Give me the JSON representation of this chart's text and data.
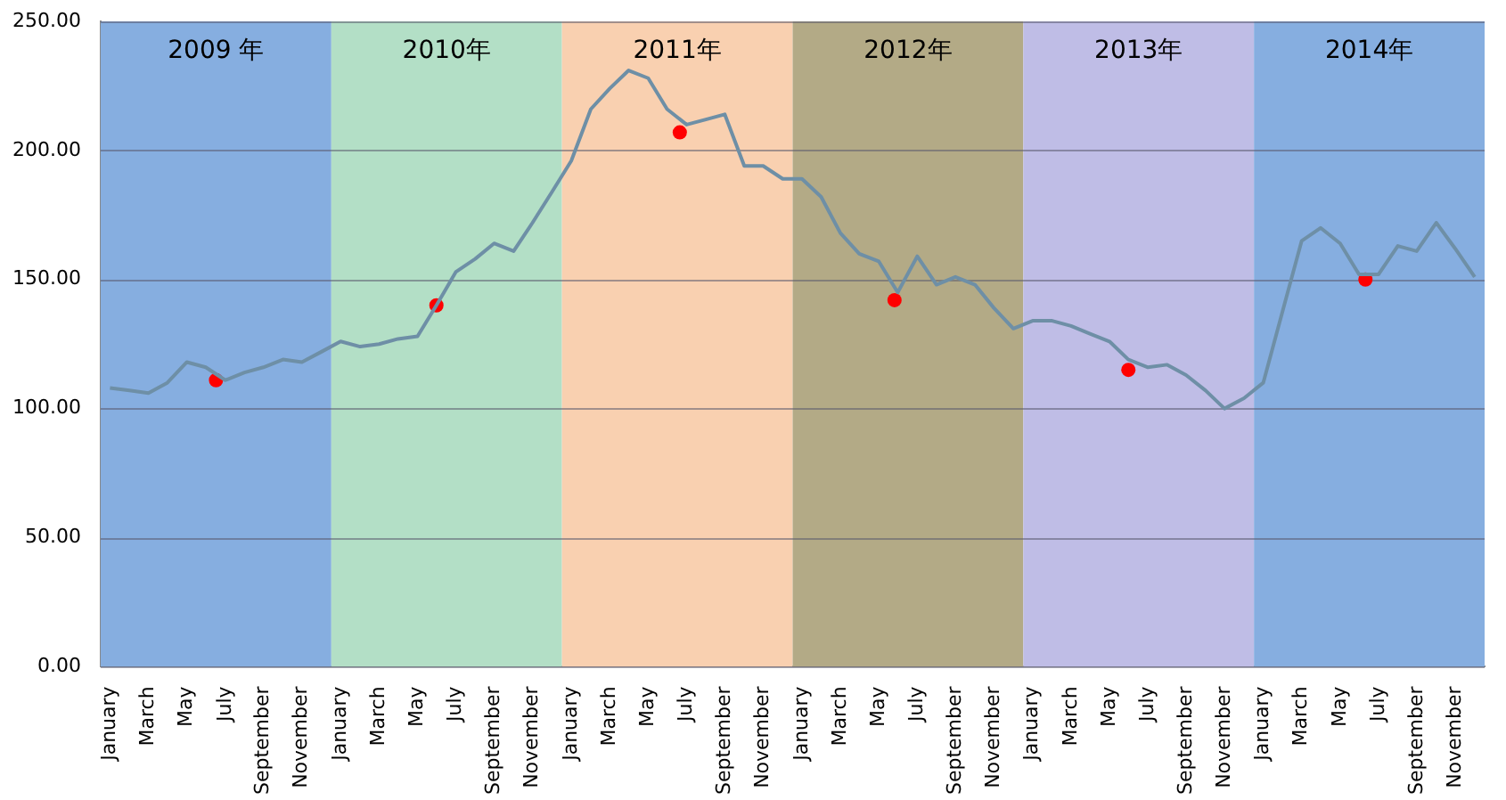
{
  "chart_data": {
    "type": "line",
    "grid": "y",
    "legend": false,
    "marker": "none",
    "line_style": "solid",
    "x": [
      "2009-01-16",
      "2009-02-15",
      "2009-03-16",
      "2009-04-15",
      "2009-05-16",
      "2009-06-15",
      "2009-07-16",
      "2009-08-16",
      "2009-09-15",
      "2009-10-16",
      "2009-11-15",
      "2009-12-16",
      "2010-01-16",
      "2010-02-15",
      "2010-03-16",
      "2010-04-15",
      "2010-05-16",
      "2010-06-15",
      "2010-07-16",
      "2010-08-16",
      "2010-09-15",
      "2010-10-16",
      "2010-11-15",
      "2010-12-16",
      "2011-01-16",
      "2011-02-15",
      "2011-03-16",
      "2011-04-15",
      "2011-05-16",
      "2011-06-15",
      "2011-07-16",
      "2011-08-16",
      "2011-09-15",
      "2011-10-16",
      "2011-11-15",
      "2011-12-16",
      "2012-01-16",
      "2012-02-15",
      "2012-03-16",
      "2012-04-15",
      "2012-05-16",
      "2012-06-15",
      "2012-07-16",
      "2012-08-16",
      "2012-09-15",
      "2012-10-16",
      "2012-11-15",
      "2012-12-16",
      "2013-01-16",
      "2013-02-15",
      "2013-03-16",
      "2013-04-15",
      "2013-05-16",
      "2013-06-15",
      "2013-07-16",
      "2013-08-16",
      "2013-09-15",
      "2013-10-16",
      "2013-11-15",
      "2013-12-16",
      "2014-01-16",
      "2014-02-15",
      "2014-03-16",
      "2014-04-15",
      "2014-05-16",
      "2014-06-15",
      "2014-07-16",
      "2014-08-16",
      "2014-09-15",
      "2014-10-16",
      "2014-11-15",
      "2014-12-16"
    ],
    "series": [
      {
        "color": "#6e8fa6",
        "values": [
          108,
          107,
          106,
          110,
          118,
          116,
          111,
          114,
          116,
          119,
          118,
          122,
          126,
          124,
          125,
          127,
          128,
          140,
          153,
          158,
          164,
          161,
          172,
          184,
          196,
          216,
          224,
          231,
          228,
          216,
          210,
          212,
          214,
          194,
          194,
          189,
          189,
          182,
          168,
          160,
          157,
          145,
          159,
          148,
          151,
          148,
          139,
          131,
          134,
          134,
          132,
          129,
          126,
          119,
          116,
          117,
          113,
          107,
          100,
          104,
          110,
          138,
          165,
          170,
          164,
          152,
          152,
          163,
          161,
          172,
          162,
          151
        ]
      },
      {
        "type": "scatter",
        "marker": "circle",
        "color": "#ff0000",
        "x": [
          "2009-07-01",
          "2010-06-15",
          "2011-07-05",
          "2012-06-10",
          "2013-06-15",
          "2014-06-25"
        ],
        "values": [
          111,
          140,
          207,
          142,
          115,
          150
        ]
      }
    ],
    "xlim": [
      "2009-01-01",
      "2015-01-01"
    ],
    "xticks": [
      {
        "value": "2009-01-16",
        "label": "January"
      },
      {
        "value": "2009-03-16",
        "label": "March"
      },
      {
        "value": "2009-05-16",
        "label": "May"
      },
      {
        "value": "2009-07-16",
        "label": "July"
      },
      {
        "value": "2009-09-15",
        "label": "September"
      },
      {
        "value": "2009-11-15",
        "label": "November"
      },
      {
        "value": "2010-01-16",
        "label": "January"
      },
      {
        "value": "2010-03-16",
        "label": "March"
      },
      {
        "value": "2010-05-16",
        "label": "May"
      },
      {
        "value": "2010-07-16",
        "label": "July"
      },
      {
        "value": "2010-09-15",
        "label": "September"
      },
      {
        "value": "2010-11-15",
        "label": "November"
      },
      {
        "value": "2011-01-16",
        "label": "January"
      },
      {
        "value": "2011-03-16",
        "label": "March"
      },
      {
        "value": "2011-05-16",
        "label": "May"
      },
      {
        "value": "2011-07-16",
        "label": "July"
      },
      {
        "value": "2011-09-15",
        "label": "September"
      },
      {
        "value": "2011-11-15",
        "label": "November"
      },
      {
        "value": "2012-01-16",
        "label": "January"
      },
      {
        "value": "2012-03-16",
        "label": "March"
      },
      {
        "value": "2012-05-16",
        "label": "May"
      },
      {
        "value": "2012-07-16",
        "label": "July"
      },
      {
        "value": "2012-09-15",
        "label": "September"
      },
      {
        "value": "2012-11-15",
        "label": "November"
      },
      {
        "value": "2013-01-16",
        "label": "January"
      },
      {
        "value": "2013-03-16",
        "label": "March"
      },
      {
        "value": "2013-05-16",
        "label": "May"
      },
      {
        "value": "2013-07-16",
        "label": "July"
      },
      {
        "value": "2013-09-15",
        "label": "September"
      },
      {
        "value": "2013-11-15",
        "label": "November"
      },
      {
        "value": "2014-01-16",
        "label": "January"
      },
      {
        "value": "2014-03-16",
        "label": "March"
      },
      {
        "value": "2014-05-16",
        "label": "May"
      },
      {
        "value": "2014-07-16",
        "label": "July"
      },
      {
        "value": "2014-09-15",
        "label": "September"
      },
      {
        "value": "2014-11-15",
        "label": "November"
      }
    ],
    "ylim": [
      0,
      250
    ],
    "yticks": [
      {
        "value": 0,
        "label": "0.00"
      },
      {
        "value": 50,
        "label": "50.00"
      },
      {
        "value": 100,
        "label": "100.00"
      },
      {
        "value": 150,
        "label": "150.00"
      },
      {
        "value": 200,
        "label": "200.00"
      },
      {
        "value": 250,
        "label": "250.00"
      }
    ],
    "bands": [
      {
        "axis": "x",
        "from": "2009-01-01",
        "to": "2010-01-01",
        "label": "2009 年",
        "color": "#86aee0"
      },
      {
        "axis": "x",
        "from": "2010-01-01",
        "to": "2011-01-01",
        "label": "2010年",
        "color": "#b3dfc6"
      },
      {
        "axis": "x",
        "from": "2011-01-01",
        "to": "2012-01-01",
        "label": "2011年",
        "color": "#f9d0b0"
      },
      {
        "axis": "x",
        "from": "2012-01-01",
        "to": "2013-01-01",
        "label": "2012年",
        "color": "#b3aa86"
      },
      {
        "axis": "x",
        "from": "2013-01-01",
        "to": "2014-01-01",
        "label": "2013年",
        "color": "#bfbde6"
      },
      {
        "axis": "x",
        "from": "2014-01-01",
        "to": "2015-01-01",
        "label": "2014年",
        "color": "#86aee0"
      }
    ]
  }
}
